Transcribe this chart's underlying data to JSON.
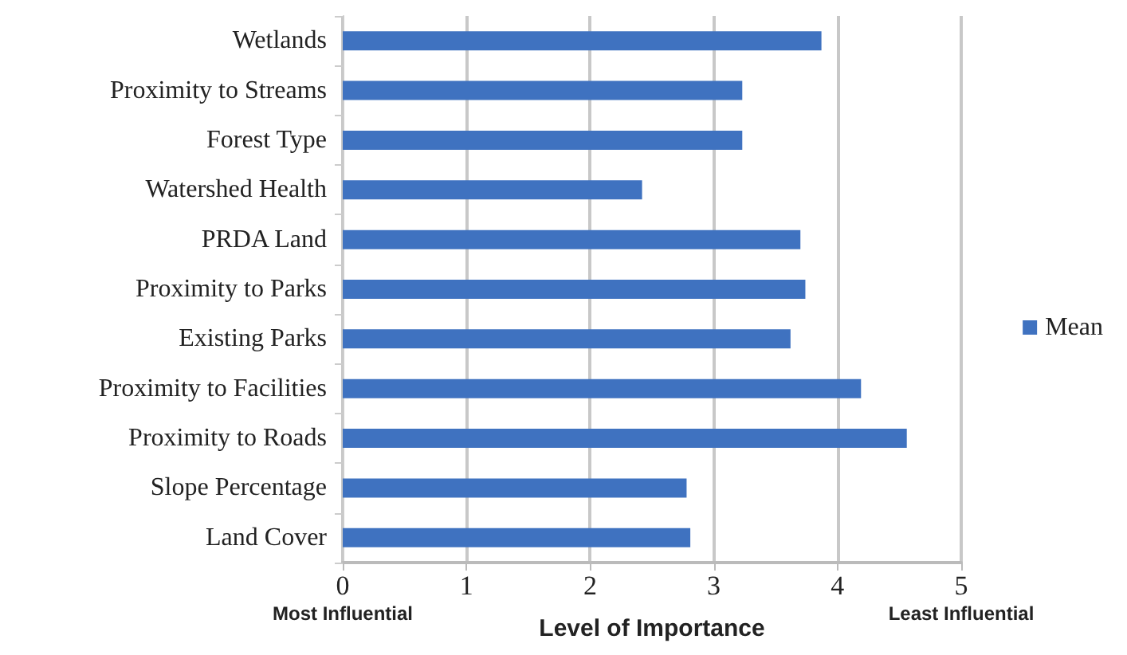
{
  "chart_data": {
    "type": "bar",
    "orientation": "horizontal",
    "categories": [
      "Wetlands",
      "Proximity to Streams",
      "Forest Type",
      "Watershed Health",
      "PRDA Land",
      "Proximity to Parks",
      "Existing Parks",
      "Proximity to Facilities",
      "Proximity to Roads",
      "Slope Percentage",
      "Land Cover"
    ],
    "series": [
      {
        "name": "Mean",
        "color": "#3f72c0",
        "values": [
          3.87,
          3.23,
          3.23,
          2.42,
          3.7,
          3.74,
          3.62,
          4.19,
          4.56,
          2.78,
          2.81
        ]
      }
    ],
    "xlabel": "Level of Importance",
    "xlim": [
      0,
      5
    ],
    "xticks": [
      0,
      1,
      2,
      3,
      4,
      5
    ],
    "annotations": [
      "Most Influential",
      "Least Influential"
    ],
    "grid": "x",
    "legend": "right"
  }
}
